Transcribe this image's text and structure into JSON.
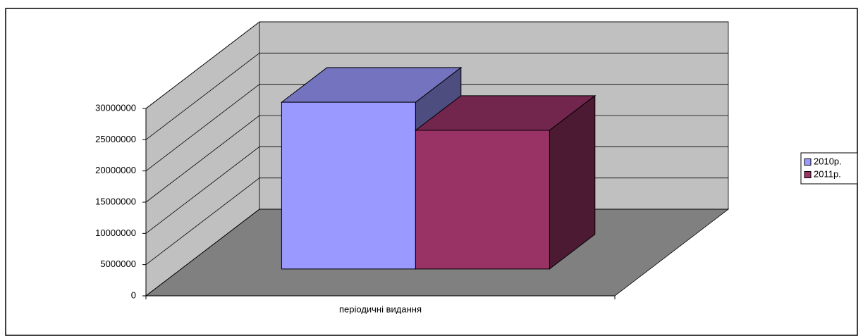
{
  "chart_data": {
    "type": "bar3d",
    "categories": [
      "періодичні видання"
    ],
    "series": [
      {
        "name": "2010р.",
        "color": "#9999ff",
        "values": [
          26700000
        ]
      },
      {
        "name": "2011р.",
        "color": "#993366",
        "values": [
          22200000
        ]
      }
    ],
    "ylim": [
      0,
      30000000
    ],
    "yticks": [
      0,
      5000000,
      10000000,
      15000000,
      20000000,
      25000000,
      30000000
    ],
    "grid": true,
    "legend": "right"
  }
}
